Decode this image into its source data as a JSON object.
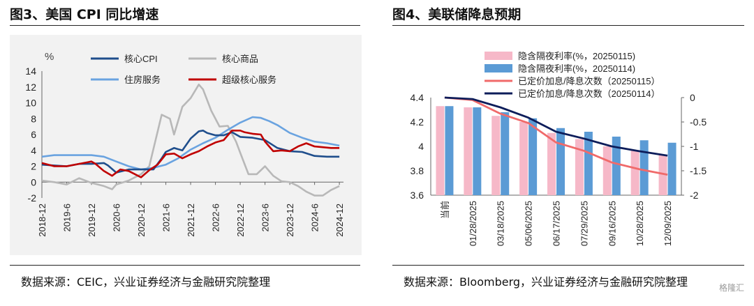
{
  "figure3": {
    "title": "图3、美国 CPI 同比增速",
    "source": "数据来源：CEIC，兴业证券经济与金融研究院整理",
    "unit": "%"
  },
  "figure4": {
    "title": "图4、美联储降息预期",
    "source": "数据来源：Bloomberg，兴业证券经济与金融研究院整理"
  },
  "watermark": "格隆汇",
  "chart_data": [
    {
      "type": "line",
      "unit_label": "%",
      "ylim": [
        -2,
        14
      ],
      "yticks": [
        -2,
        0,
        2,
        4,
        6,
        8,
        10,
        12,
        14
      ],
      "xlim": [
        2018.917,
        2025.0
      ],
      "xtick_labels": [
        "2018-12",
        "2019-6",
        "2019-12",
        "2020-6",
        "2020-12",
        "2021-6",
        "2021-12",
        "2022-6",
        "2022-12",
        "2023-6",
        "2023-12",
        "2024-6",
        "2024-12"
      ],
      "xtick_values": [
        2018.917,
        2019.417,
        2019.917,
        2020.417,
        2020.917,
        2021.417,
        2021.917,
        2022.417,
        2022.917,
        2023.417,
        2023.917,
        2024.417,
        2024.917
      ],
      "legend_position": "top",
      "series": [
        {
          "name": "核心CPI",
          "color": "#1f4e8c",
          "x": [
            2018.917,
            2019.167,
            2019.417,
            2019.667,
            2019.917,
            2020.167,
            2020.25,
            2020.417,
            2020.667,
            2020.917,
            2021.167,
            2021.333,
            2021.417,
            2021.583,
            2021.75,
            2021.917,
            2022.083,
            2022.167,
            2022.25,
            2022.417,
            2022.583,
            2022.75,
            2022.917,
            2023.167,
            2023.417,
            2023.667,
            2023.917,
            2024.167,
            2024.417,
            2024.667,
            2024.917
          ],
          "y": [
            2.2,
            2.1,
            2.0,
            2.3,
            2.3,
            2.4,
            2.1,
            1.2,
            1.6,
            1.6,
            1.6,
            3.0,
            3.8,
            4.3,
            4.0,
            5.5,
            6.4,
            6.5,
            6.2,
            5.9,
            5.9,
            6.3,
            5.7,
            5.6,
            5.3,
            4.3,
            3.9,
            3.8,
            3.3,
            3.2,
            3.2
          ]
        },
        {
          "name": "核心商品",
          "color": "#b8b8b8",
          "x": [
            2018.917,
            2019.167,
            2019.417,
            2019.667,
            2019.917,
            2020.167,
            2020.333,
            2020.417,
            2020.667,
            2020.917,
            2021.083,
            2021.333,
            2021.5,
            2021.583,
            2021.75,
            2021.917,
            2022.083,
            2022.167,
            2022.333,
            2022.5,
            2022.667,
            2022.833,
            2022.917,
            2023.083,
            2023.25,
            2023.417,
            2023.583,
            2023.75,
            2023.917,
            2024.083,
            2024.25,
            2024.417,
            2024.583,
            2024.75,
            2024.917
          ],
          "y": [
            0.2,
            0.0,
            -0.3,
            0.5,
            -0.1,
            -0.5,
            -0.9,
            -0.3,
            0.2,
            1.0,
            2.0,
            8.5,
            8.0,
            6.0,
            9.5,
            10.6,
            12.3,
            11.7,
            9.0,
            7.0,
            7.1,
            5.1,
            3.7,
            1.0,
            1.0,
            2.0,
            0.8,
            0.1,
            0.0,
            -0.5,
            -1.2,
            -1.7,
            -1.7,
            -1.0,
            -0.5
          ]
        },
        {
          "name": "住房服务",
          "color": "#6aa3e0",
          "x": [
            2018.917,
            2019.167,
            2019.417,
            2019.667,
            2019.917,
            2020.167,
            2020.417,
            2020.667,
            2020.917,
            2021.167,
            2021.417,
            2021.667,
            2021.917,
            2022.167,
            2022.417,
            2022.667,
            2022.917,
            2023.167,
            2023.333,
            2023.5,
            2023.667,
            2023.917,
            2024.167,
            2024.417,
            2024.667,
            2024.917
          ],
          "y": [
            3.2,
            3.4,
            3.4,
            3.4,
            3.4,
            3.2,
            2.6,
            2.0,
            1.6,
            1.8,
            2.2,
            3.0,
            4.1,
            4.9,
            5.6,
            6.6,
            7.5,
            8.2,
            8.1,
            7.7,
            7.2,
            6.2,
            5.6,
            5.1,
            4.9,
            4.6
          ]
        },
        {
          "name": "超级核心服务",
          "color": "#c00000",
          "x": [
            2018.917,
            2019.167,
            2019.417,
            2019.667,
            2019.917,
            2020.0,
            2020.167,
            2020.333,
            2020.5,
            2020.667,
            2020.917,
            2021.083,
            2021.25,
            2021.417,
            2021.583,
            2021.75,
            2021.917,
            2022.083,
            2022.25,
            2022.417,
            2022.583,
            2022.75,
            2022.917,
            2023.0,
            2023.167,
            2023.333,
            2023.417,
            2023.583,
            2023.75,
            2023.917,
            2024.083,
            2024.25,
            2024.417,
            2024.583,
            2024.75,
            2024.917
          ],
          "y": [
            2.4,
            2.0,
            2.0,
            2.3,
            2.6,
            2.3,
            1.4,
            0.8,
            1.6,
            1.4,
            0.6,
            1.5,
            2.2,
            3.5,
            3.6,
            3.0,
            3.5,
            3.9,
            4.5,
            5.0,
            5.3,
            6.5,
            6.5,
            6.3,
            6.1,
            6.0,
            5.1,
            3.9,
            4.0,
            3.9,
            4.5,
            4.9,
            4.5,
            4.4,
            4.3,
            4.3
          ]
        }
      ]
    },
    {
      "type": "bar",
      "categories": [
        "当前",
        "01/28/2025",
        "03/18/2025",
        "05/06/2025",
        "06/17/2025",
        "07/29/2025",
        "09/16/2025",
        "10/28/2025",
        "12/09/2025"
      ],
      "y_left_lim": [
        3.6,
        4.4
      ],
      "y_left_ticks": [
        3.6,
        3.8,
        4.0,
        4.2,
        4.4
      ],
      "y_left_tick_labels": [
        "3.6",
        "3.8",
        "4",
        "4.2",
        "4.4"
      ],
      "y_right_lim": [
        -2,
        0
      ],
      "y_right_ticks": [
        -2,
        -1.5,
        -1,
        -0.5,
        0
      ],
      "y_right_tick_labels": [
        "-2",
        "-1.5",
        "-1",
        "-0.5",
        "0"
      ],
      "legend_position": "top",
      "series": [
        {
          "name": "隐含隔夜利率(%，20250115)",
          "kind": "bar",
          "axis": "left",
          "color": "#f6b8c8",
          "values": [
            4.33,
            4.32,
            4.25,
            4.2,
            4.11,
            4.06,
            4.0,
            3.97,
            3.93
          ]
        },
        {
          "name": "隐含隔夜利率(%，20250114)",
          "kind": "bar",
          "axis": "left",
          "color": "#5b9bd5",
          "values": [
            4.33,
            4.32,
            4.28,
            4.23,
            4.15,
            4.12,
            4.08,
            4.05,
            4.03
          ]
        },
        {
          "name": "已定价加息/降息次数（20250115）",
          "kind": "line",
          "axis": "right",
          "color": "#f06a6a",
          "values": [
            0.0,
            -0.05,
            -0.33,
            -0.52,
            -0.92,
            -1.09,
            -1.33,
            -1.47,
            -1.58
          ]
        },
        {
          "name": "已定价加息/降息次数（20250114）",
          "kind": "line",
          "axis": "right",
          "color": "#0d1d5a",
          "values": [
            0.0,
            -0.03,
            -0.2,
            -0.41,
            -0.7,
            -0.84,
            -1.0,
            -1.1,
            -1.19
          ]
        }
      ]
    }
  ]
}
